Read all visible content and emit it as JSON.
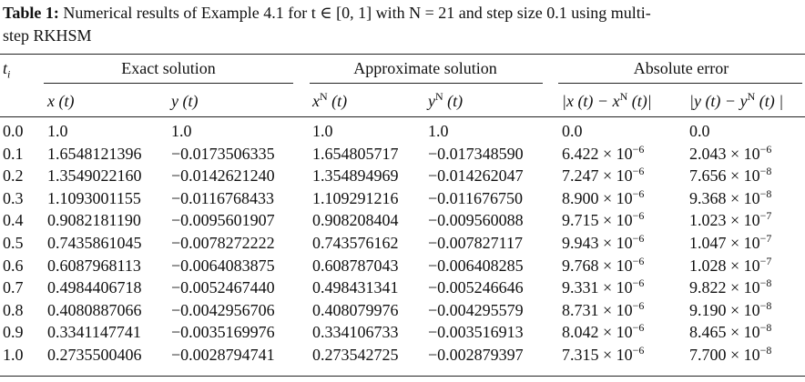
{
  "caption": {
    "label": "Table 1:",
    "lines": [
      "Numerical results of Example 4.1 for t ∈ [0, 1] with N = 21 and step size 0.1 using multi-",
      "step RKHSM"
    ]
  },
  "table": {
    "groups": [
      "Exact solution",
      "Approximate solution",
      "Absolute error"
    ],
    "first_header": {
      "base": "t",
      "sub": "i"
    },
    "headers": [
      {
        "base": "x",
        "arg": " (t)"
      },
      {
        "base": "y",
        "arg": " (t)"
      },
      {
        "base": "x",
        "sup": "N",
        "arg": " (t)"
      },
      {
        "base": "y",
        "sup": "N",
        "arg": " (t)"
      },
      {
        "base": "|x (t) − x",
        "sup": "N",
        "arg": " (t)|"
      },
      {
        "base": "|y (t) − y",
        "sup": "N",
        "arg": " (t) |"
      }
    ],
    "rows": [
      [
        "0.0",
        "1.0",
        "1.0",
        "1.0",
        "1.0",
        "0.0",
        "0.0"
      ],
      [
        "0.1",
        "1.6548121396",
        "−0.0173506335",
        "1.654805717",
        "−0.017348590",
        {
          "base": "6.422 × 10",
          "exp": "−6"
        },
        {
          "base": "2.043 × 10",
          "exp": "−6"
        }
      ],
      [
        "0.2",
        "1.3549022160",
        "−0.0142621240",
        "1.354894969",
        "−0.014262047",
        {
          "base": "7.247 × 10",
          "exp": "−6"
        },
        {
          "base": "7.656 × 10",
          "exp": "−8"
        }
      ],
      [
        "0.3",
        "1.1093001155",
        "−0.0116768433",
        "1.109291216",
        "−0.011676750",
        {
          "base": "8.900 × 10",
          "exp": "−6"
        },
        {
          "base": "9.368 × 10",
          "exp": "−8"
        }
      ],
      [
        "0.4",
        "0.9082181190",
        "−0.0095601907",
        "0.908208404",
        "−0.009560088",
        {
          "base": "9.715 × 10",
          "exp": "−6"
        },
        {
          "base": "1.023 × 10",
          "exp": "−7"
        }
      ],
      [
        "0.5",
        "0.7435861045",
        "−0.0078272222",
        "0.743576162",
        "−0.007827117",
        {
          "base": "9.943 × 10",
          "exp": "−6"
        },
        {
          "base": "1.047 × 10",
          "exp": "−7"
        }
      ],
      [
        "0.6",
        "0.6087968113",
        "−0.0064083875",
        "0.608787043",
        "−0.006408285",
        {
          "base": "9.768 × 10",
          "exp": "−6"
        },
        {
          "base": "1.028 × 10",
          "exp": "−7"
        }
      ],
      [
        "0.7",
        "0.4984406718",
        "−0.0052467440",
        "0.498431341",
        "−0.005246646",
        {
          "base": "9.331 × 10",
          "exp": "−6"
        },
        {
          "base": "9.822 × 10",
          "exp": "−8"
        }
      ],
      [
        "0.8",
        "0.4080887066",
        "−0.0042956706",
        "0.408079976",
        "−0.004295579",
        {
          "base": "8.731 × 10",
          "exp": "−6"
        },
        {
          "base": "9.190 × 10",
          "exp": "−8"
        }
      ],
      [
        "0.9",
        "0.3341147741",
        "−0.0035169976",
        "0.334106733",
        "−0.003516913",
        {
          "base": "8.042 × 10",
          "exp": "−6"
        },
        {
          "base": "8.465 × 10",
          "exp": "−8"
        }
      ],
      [
        "1.0",
        "0.2735500406",
        "−0.0028794741",
        "0.273542725",
        "−0.002879397",
        {
          "base": "7.315 × 10",
          "exp": "−6"
        },
        {
          "base": "7.700 × 10",
          "exp": "−8"
        }
      ]
    ]
  }
}
